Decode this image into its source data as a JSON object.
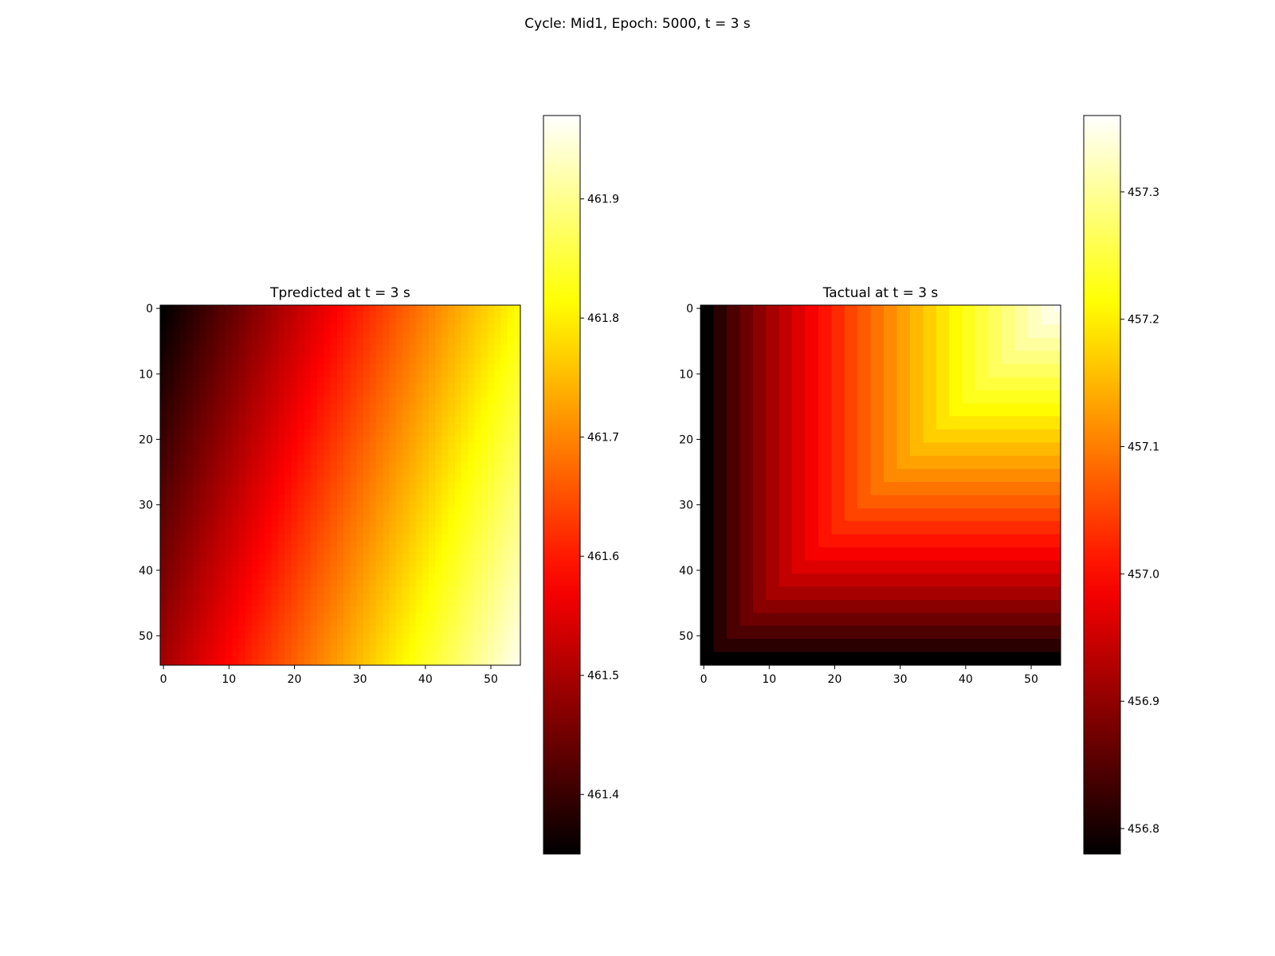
{
  "figure": {
    "suptitle": "Cycle: Mid1, Epoch: 5000, t = 3 s"
  },
  "chart_data": [
    {
      "type": "heatmap",
      "title": "Tpredicted at t = 3 s",
      "colormap": "hot",
      "grid_size": 55,
      "xlim": [
        -0.5,
        54.5
      ],
      "ylim": [
        54.5,
        -0.5
      ],
      "xticks": [
        0,
        10,
        20,
        30,
        40,
        50
      ],
      "yticks": [
        0,
        10,
        20,
        30,
        40,
        50
      ],
      "value_range": [
        461.35,
        461.97
      ],
      "colorbar_ticks": [
        461.4,
        461.5,
        461.6,
        461.7,
        461.8,
        461.9
      ],
      "colorbar_tick_labels": [
        "461.4",
        "461.5",
        "461.6",
        "461.7",
        "461.8",
        "461.9"
      ],
      "field_model": {
        "kind": "linear_gradient",
        "v_origin": 461.35,
        "dv_per_col": 0.0085,
        "dv_per_row": 0.0027,
        "note_min_corner": "top-left",
        "note_max_corner": "bottom-right"
      },
      "sample_values": [
        {
          "row": 0,
          "col": 0,
          "value": 461.35
        },
        {
          "row": 0,
          "col": 27,
          "value": 461.58
        },
        {
          "row": 0,
          "col": 54,
          "value": 461.81
        },
        {
          "row": 27,
          "col": 0,
          "value": 461.42
        },
        {
          "row": 27,
          "col": 27,
          "value": 461.65
        },
        {
          "row": 27,
          "col": 54,
          "value": 461.88
        },
        {
          "row": 54,
          "col": 0,
          "value": 461.5
        },
        {
          "row": 54,
          "col": 27,
          "value": 461.73
        },
        {
          "row": 54,
          "col": 54,
          "value": 461.97
        }
      ]
    },
    {
      "type": "heatmap",
      "title": "Tactual at t = 3 s",
      "colormap": "hot",
      "grid_size": 55,
      "xlim": [
        -0.5,
        54.5
      ],
      "ylim": [
        54.5,
        -0.5
      ],
      "xticks": [
        0,
        10,
        20,
        30,
        40,
        50
      ],
      "yticks": [
        0,
        10,
        20,
        30,
        40,
        50
      ],
      "value_range": [
        456.78,
        457.36
      ],
      "colorbar_ticks": [
        456.8,
        456.9,
        457.0,
        457.1,
        457.2,
        457.3
      ],
      "colorbar_tick_labels": [
        "456.8",
        "456.9",
        "457.0",
        "457.1",
        "457.2",
        "457.3"
      ],
      "field_model": {
        "kind": "min_of_edge_distances",
        "v_min": 456.78,
        "v_max": 457.36,
        "edges": [
          "left",
          "bottom"
        ],
        "distance_max": 54,
        "step_cells": 2,
        "exponent": 0.85,
        "note_hot_corner": "top-right"
      },
      "sample_values": [
        {
          "row": 0,
          "col": 0,
          "value": 456.78
        },
        {
          "row": 0,
          "col": 27,
          "value": 457.11
        },
        {
          "row": 0,
          "col": 54,
          "value": 457.36
        },
        {
          "row": 27,
          "col": 0,
          "value": 456.78
        },
        {
          "row": 27,
          "col": 27,
          "value": 457.11
        },
        {
          "row": 27,
          "col": 54,
          "value": 457.11
        },
        {
          "row": 54,
          "col": 0,
          "value": 456.78
        },
        {
          "row": 54,
          "col": 27,
          "value": 456.78
        },
        {
          "row": 54,
          "col": 54,
          "value": 456.78
        }
      ]
    }
  ]
}
